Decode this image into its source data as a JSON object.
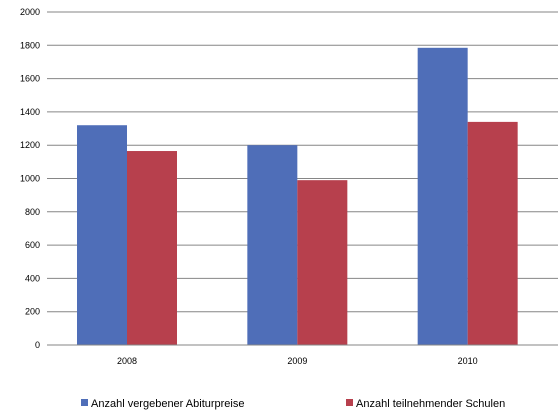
{
  "chart_data": {
    "type": "bar",
    "categories": [
      "2008",
      "2009",
      "2010"
    ],
    "series": [
      {
        "name": "Anzahl vergebener Abiturpreise",
        "values": [
          1320,
          1200,
          1785
        ],
        "color": "#4F6EB8"
      },
      {
        "name": "Anzahl teilnehmender Schulen",
        "values": [
          1165,
          990,
          1340
        ],
        "color": "#B7404D"
      }
    ],
    "ylim": [
      0,
      2000
    ],
    "yticks": [
      "0",
      "200",
      "400",
      "600",
      "800",
      "1000",
      "1200",
      "1400",
      "1600",
      "1800",
      "2000"
    ],
    "grid": true,
    "legend_position": "bottom"
  }
}
